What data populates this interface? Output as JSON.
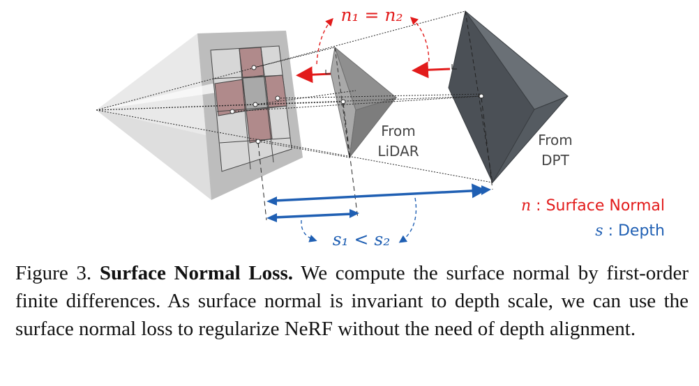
{
  "colors": {
    "normal_red": "#e21b1b",
    "depth_blue": "#1f5fb3",
    "lidar_gray": "#9d9d9d",
    "dpt_gray": "#5b6166",
    "pixel_highlight": "#b08a8b"
  },
  "figure": {
    "normal_equation": "n₁ = n₂",
    "depth_inequality": "s₁ < s₂",
    "lidar_label_line1": "From",
    "lidar_label_line2": "LiDAR",
    "dpt_label_line1": "From",
    "dpt_label_line2": "DPT",
    "legend": {
      "normal_symbol": "n",
      "normal_text": " : Surface Normal",
      "depth_symbol": "s",
      "depth_text": " : Depth"
    }
  },
  "caption": {
    "figure_number": "Figure 3. ",
    "title": "Surface Normal Loss.",
    "body": " We compute the surface normal by first-order finite differences. As surface normal is invariant to depth scale, we can use the surface normal loss to regularize NeRF without the need of depth alignment."
  }
}
